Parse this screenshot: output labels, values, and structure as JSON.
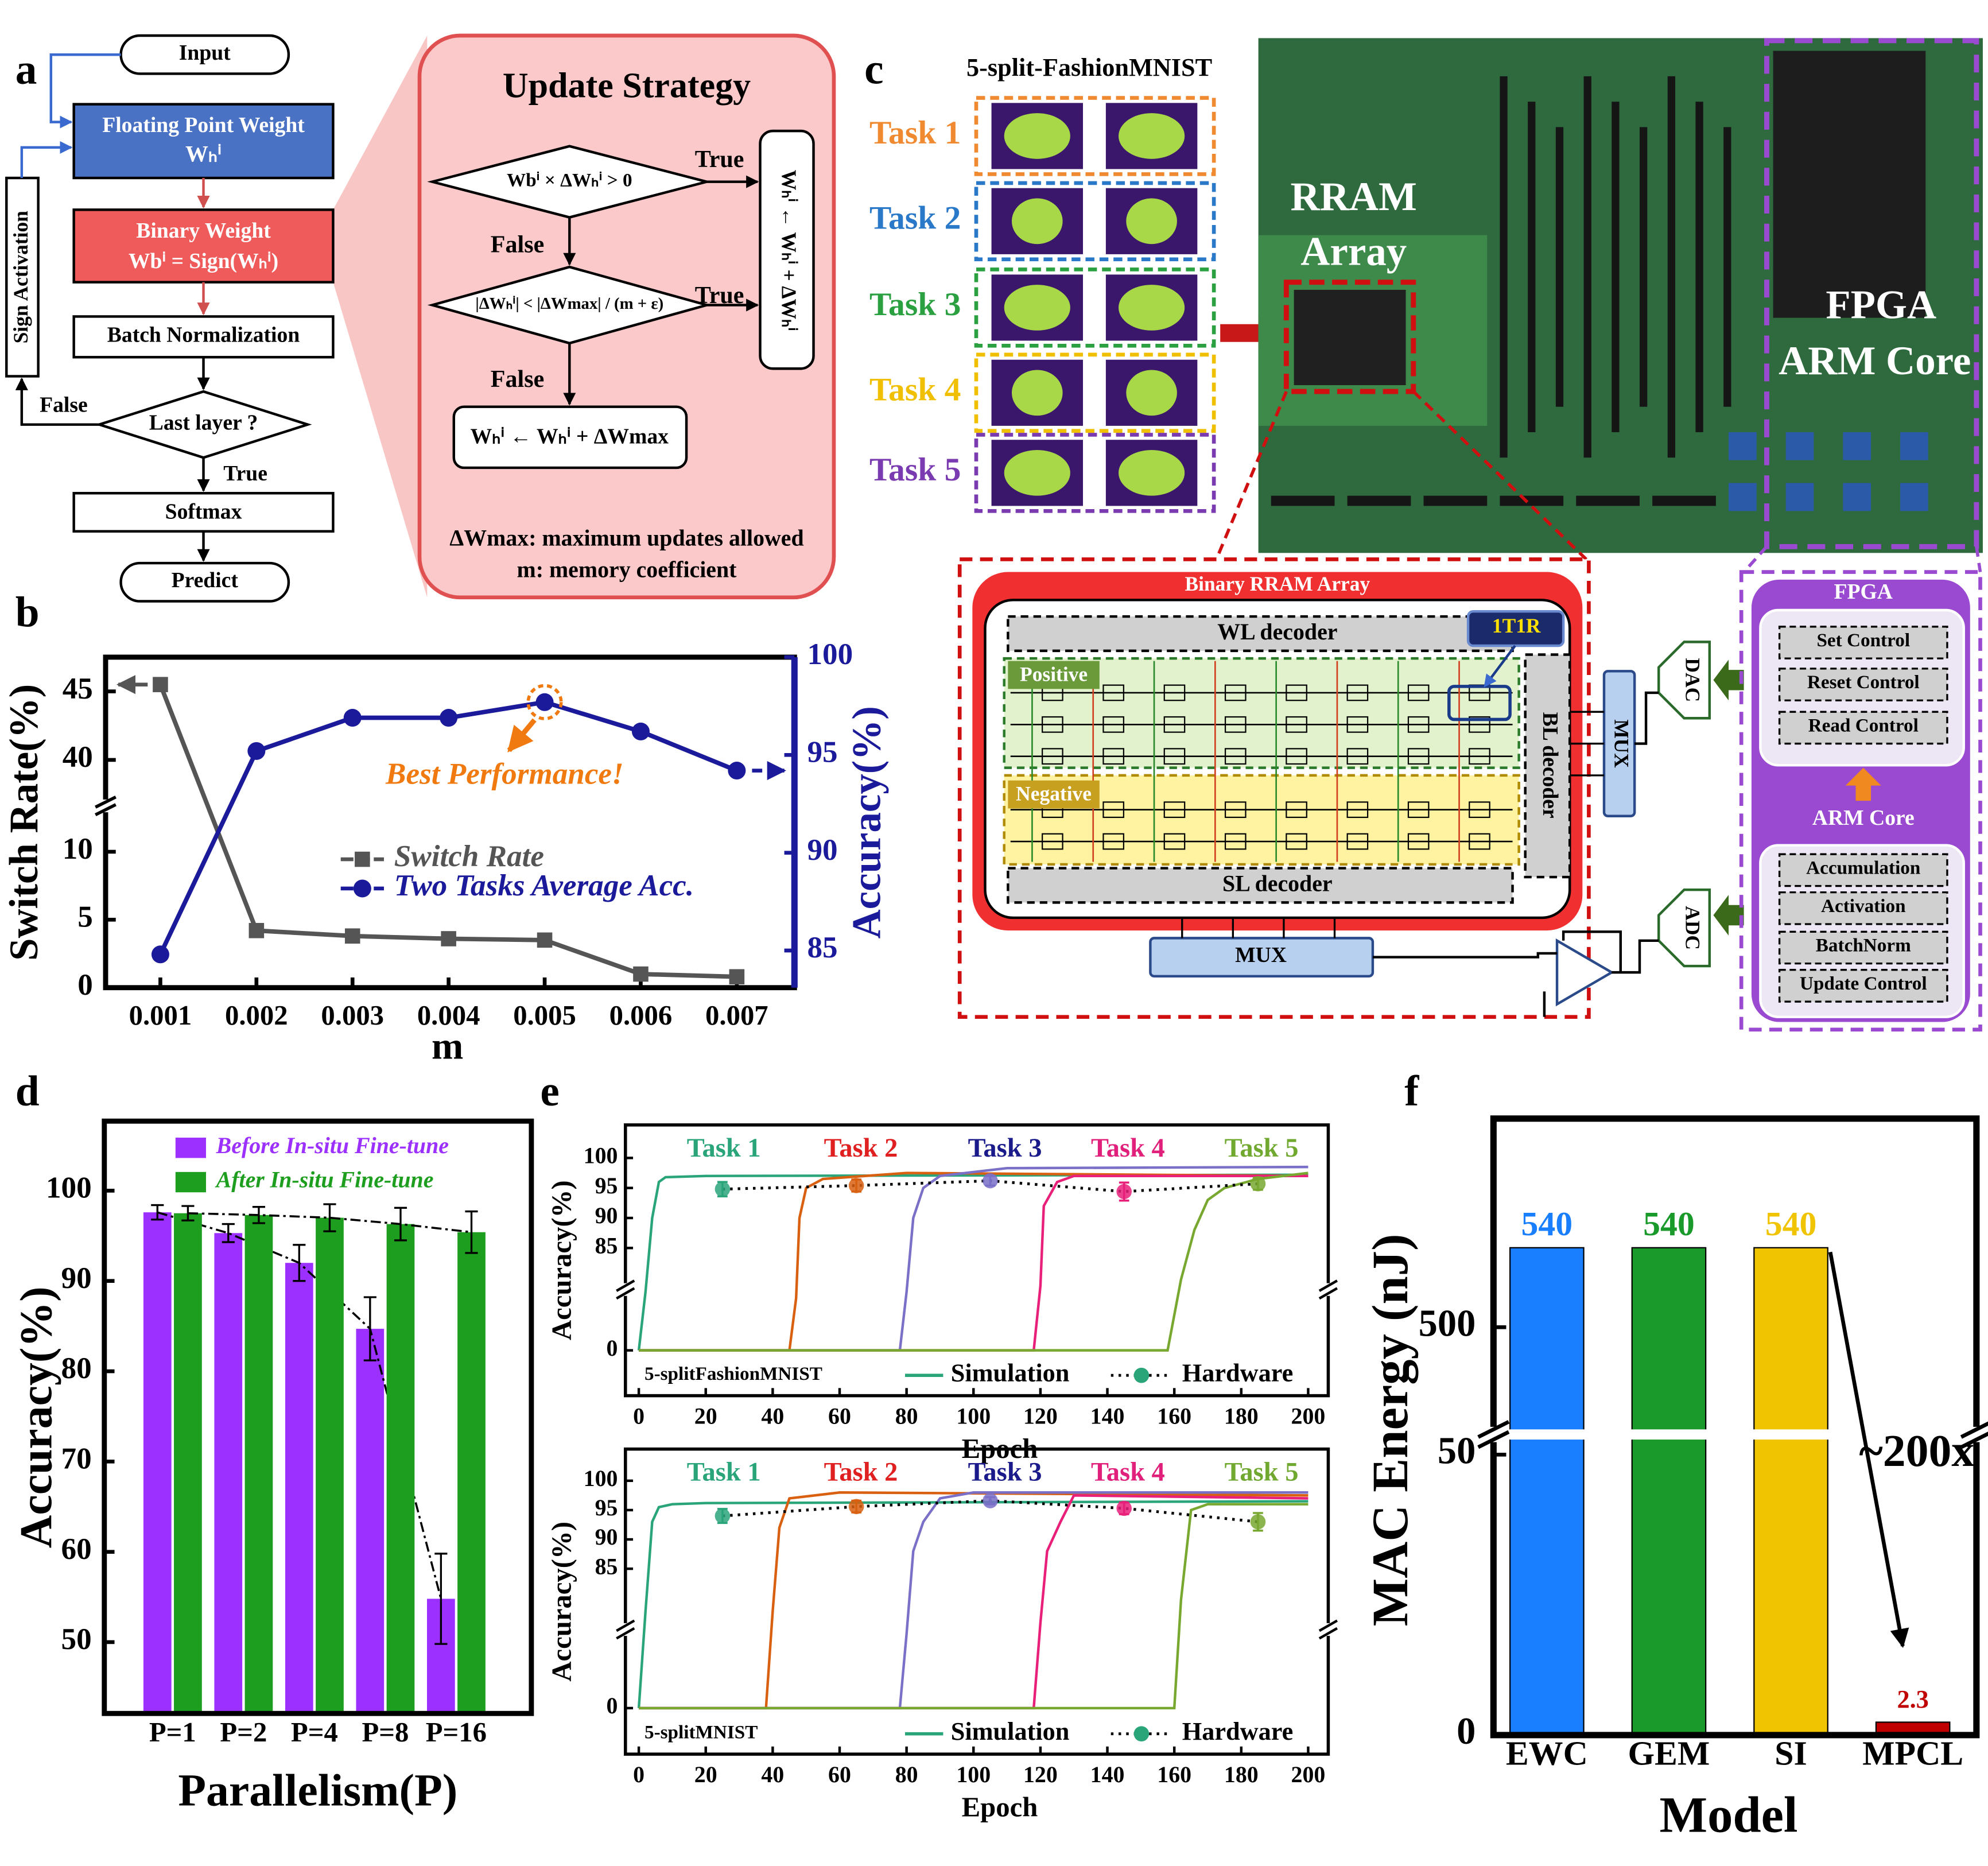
{
  "panel_labels": [
    "a",
    "b",
    "c",
    "d",
    "e",
    "f"
  ],
  "flowchart": {
    "input": "Input",
    "float_weight": "Floating Point Weight",
    "float_weight_symbol": "Wₕⁱ",
    "binary_weight": "Binary Weight",
    "binary_weight_formula": "Wbⁱ = Sign(Wₕⁱ)",
    "batch_norm": "Batch Normalization",
    "last_layer": "Last layer ?",
    "false": "False",
    "true": "True",
    "softmax": "Softmax",
    "predict": "Predict",
    "sign_activation": "Sign Activation"
  },
  "update_strategy": {
    "title": "Update Strategy",
    "condition1": "Wbⁱ × ΔWₕⁱ > 0",
    "condition2": "|ΔWₕⁱ| < |ΔWmax| / (m + ε)",
    "true1": "True",
    "false1": "False",
    "true2": "True",
    "false2": "False",
    "action_true": "Wₕⁱ ← Wₕⁱ + ΔWₕⁱ",
    "action_false": "Wₕⁱ ← Wₕⁱ + ΔWmax",
    "note1": "ΔWmax: maximum updates allowed",
    "note2": "m: memory coefficient"
  },
  "board": {
    "dataset_title": "5-split-FashionMNIST",
    "tasks": [
      {
        "label": "Task 1",
        "color": "#f08a30"
      },
      {
        "label": "Task 2",
        "color": "#2a78c8"
      },
      {
        "label": "Task 3",
        "color": "#2aa040"
      },
      {
        "label": "Task 4",
        "color": "#f0c000"
      },
      {
        "label": "Task 5",
        "color": "#7a3ab0"
      }
    ],
    "rram_label": [
      "RRAM",
      "Array"
    ],
    "fpga_label": [
      "FPGA",
      "ARM Core"
    ],
    "array_title": "Binary RRAM Array",
    "wl_decoder": "WL decoder",
    "cell": "1T1R",
    "positive": "Positive",
    "negative": "Negative",
    "sl_decoder": "SL decoder",
    "bl_decoder": "BL decoder",
    "mux_right": "MUX",
    "mux_bottom": "MUX",
    "dac": "DAC",
    "adc": "ADC",
    "fpga_title": "FPGA",
    "fpga_blocks": [
      "Set Control",
      "Reset Control",
      "Read Control"
    ],
    "arm_title": "ARM Core",
    "arm_blocks": [
      "Accumulation",
      "Activation",
      "BatchNorm",
      "Update Control"
    ]
  },
  "chart_data": [
    {
      "type": "line",
      "x": [
        0.001,
        0.002,
        0.003,
        0.004,
        0.005,
        0.006,
        0.007
      ],
      "xlim": [
        0.00043,
        0.0076
      ],
      "xticks": [
        0.001,
        0.002,
        0.003,
        0.004,
        0.005,
        0.006,
        0.007
      ],
      "xlabel": "m",
      "ylabel": "Switch Rate(%)",
      "y2label": "Accuracy(%)",
      "ylim": [
        0,
        47.5
      ],
      "y_break": [
        11.5,
        38.5
      ],
      "yticks": [
        0,
        5,
        10,
        40,
        45
      ],
      "y2lim": [
        83.1,
        100
      ],
      "y2ticks": [
        85,
        90,
        95,
        100
      ],
      "series": [
        {
          "name": "Switch Rate",
          "color": "#555555",
          "marker": "square",
          "values": [
            45.5,
            4.2,
            3.8,
            3.6,
            3.5,
            1.0,
            0.8
          ]
        },
        {
          "name": "Two Tasks Average Acc.",
          "color": "#1a1a9a",
          "marker": "circle",
          "axis": "y2",
          "values": [
            84.8,
            95.2,
            96.9,
            96.9,
            97.7,
            96.2,
            94.2
          ]
        }
      ],
      "annotation": "Best Performance!",
      "annotation_color": "#f07a10"
    },
    {
      "type": "bar",
      "categories": [
        "P=1",
        "P=2",
        "P=4",
        "P=8",
        "P=16"
      ],
      "xlabel": "Parallelism(P)",
      "ylabel": "Accuracy(%)",
      "ylim": [
        42.1,
        107.7
      ],
      "yticks": [
        50,
        60,
        70,
        80,
        90,
        100
      ],
      "series": [
        {
          "name": "Before In-situ Fine-tune",
          "color": "#9b30ff",
          "values": [
            97.6,
            95.3,
            92.0,
            84.7,
            54.8
          ],
          "errors": [
            0.8,
            1.0,
            2.0,
            3.5,
            5.0
          ]
        },
        {
          "name": "After  In-situ Fine-tune",
          "color": "#1e9e1e",
          "values": [
            97.5,
            97.3,
            97.0,
            96.3,
            95.4
          ],
          "errors": [
            0.8,
            0.9,
            1.5,
            1.8,
            2.3
          ]
        }
      ]
    },
    {
      "type": "line",
      "dataset": "5-splitFashionMNIST",
      "xlabel": "Epoch",
      "ylabel": "Accuracy(%)",
      "xlim": [
        -4,
        206
      ],
      "xticks": [
        0,
        20,
        40,
        60,
        80,
        100,
        120,
        140,
        160,
        180,
        200
      ],
      "ylim": [
        -7.3,
        105.5
      ],
      "y_break": [
        6,
        82
      ],
      "yticks": [
        0,
        85,
        90,
        95,
        100
      ],
      "simulation_label": "Simulation",
      "series": [
        {
          "name": "Task 1",
          "color": "#2aa57a",
          "label_color": "#2aa57a",
          "x": [
            0,
            2,
            4,
            6,
            8,
            20,
            200
          ],
          "values": [
            0,
            40,
            90,
            96,
            96.8,
            97,
            97.2
          ]
        },
        {
          "name": "Task 2",
          "color": "#d86010",
          "label_color": "#e02020",
          "x": [
            0,
            45,
            47,
            48,
            50,
            55,
            80,
            200
          ],
          "values": [
            0,
            0,
            30,
            90,
            95,
            96.5,
            97.5,
            97
          ]
        },
        {
          "name": "Task 3",
          "color": "#7a70c8",
          "label_color": "#1a1a8a",
          "x": [
            0,
            78,
            80,
            82,
            85,
            90,
            110,
            200
          ],
          "values": [
            0,
            0,
            40,
            90,
            95,
            97,
            98.3,
            98.5
          ]
        },
        {
          "name": "Task 4",
          "color": "#e8207a",
          "label_color": "#e0207a",
          "x": [
            0,
            118,
            120,
            121,
            125,
            130,
            200
          ],
          "values": [
            0,
            0,
            50,
            92,
            96,
            97,
            97
          ]
        },
        {
          "name": "Task 5",
          "color": "#78a830",
          "label_color": "#70a830",
          "x": [
            0,
            158,
            162,
            166,
            170,
            175,
            185,
            200
          ],
          "values": [
            0,
            0,
            60,
            88,
            93,
            95,
            96.5,
            97.5
          ]
        }
      ],
      "hardware": {
        "name": "Hardware",
        "x": [
          25,
          65,
          105,
          145,
          185
        ],
        "values": [
          94.8,
          95.4,
          96.2,
          94.4,
          95.7
        ],
        "errors": [
          1.2,
          1.0,
          0.8,
          1.5,
          1.0
        ]
      }
    },
    {
      "type": "line",
      "dataset": "5-splitMNIST",
      "xlabel": "Epoch",
      "ylabel": "Accuracy(%)",
      "xlim": [
        -4,
        206
      ],
      "xticks": [
        0,
        20,
        40,
        60,
        80,
        100,
        120,
        140,
        160,
        180,
        200
      ],
      "ylim": [
        -7.8,
        105.4
      ],
      "y_break": [
        6,
        82
      ],
      "yticks": [
        0,
        85,
        90,
        95,
        100
      ],
      "simulation_label": "Simulation",
      "series": [
        {
          "name": "Task 1",
          "color": "#2aa57a",
          "label_color": "#2aa57a",
          "x": [
            0,
            2,
            4,
            6,
            10,
            20,
            200
          ],
          "values": [
            0,
            60,
            93,
            95.5,
            96,
            96.2,
            96.5
          ]
        },
        {
          "name": "Task 2",
          "color": "#d86010",
          "label_color": "#e02020",
          "x": [
            0,
            38,
            40,
            42,
            45,
            60,
            200
          ],
          "values": [
            0,
            0,
            60,
            92,
            97,
            98,
            97.5
          ]
        },
        {
          "name": "Task 3",
          "color": "#7a70c8",
          "label_color": "#1a1a8a",
          "x": [
            0,
            78,
            80,
            82,
            85,
            90,
            100,
            200
          ],
          "values": [
            0,
            0,
            40,
            88,
            93,
            97,
            98,
            98
          ]
        },
        {
          "name": "Task 4",
          "color": "#e8207a",
          "label_color": "#e0207a",
          "x": [
            0,
            118,
            120,
            122,
            126,
            130,
            200
          ],
          "values": [
            0,
            0,
            50,
            88,
            93,
            97.5,
            97
          ]
        },
        {
          "name": "Task 5",
          "color": "#78a830",
          "label_color": "#70a830",
          "x": [
            0,
            160,
            162,
            165,
            170,
            200
          ],
          "values": [
            0,
            0,
            70,
            95,
            96,
            96
          ]
        }
      ],
      "hardware": {
        "name": "Hardware",
        "x": [
          25,
          65,
          105,
          145,
          185
        ],
        "values": [
          94.0,
          95.6,
          96.6,
          95.3,
          93.0
        ],
        "errors": [
          1.2,
          1.0,
          0.6,
          1.0,
          1.5
        ]
      }
    },
    {
      "type": "bar",
      "categories": [
        "EWC",
        "GEM",
        "SI",
        "MPCL"
      ],
      "values": [
        540,
        540,
        540,
        2.3
      ],
      "colors": [
        "#1a7fff",
        "#1a9a2a",
        "#f0c400",
        "#c00000"
      ],
      "xlabel": "Model",
      "ylabel": "MAC Energy (nJ)",
      "ylim": [
        0,
        605
      ],
      "y_break": [
        53.6,
        446
      ],
      "yticks": [
        0,
        50,
        500
      ],
      "annotation": "~200x"
    }
  ]
}
